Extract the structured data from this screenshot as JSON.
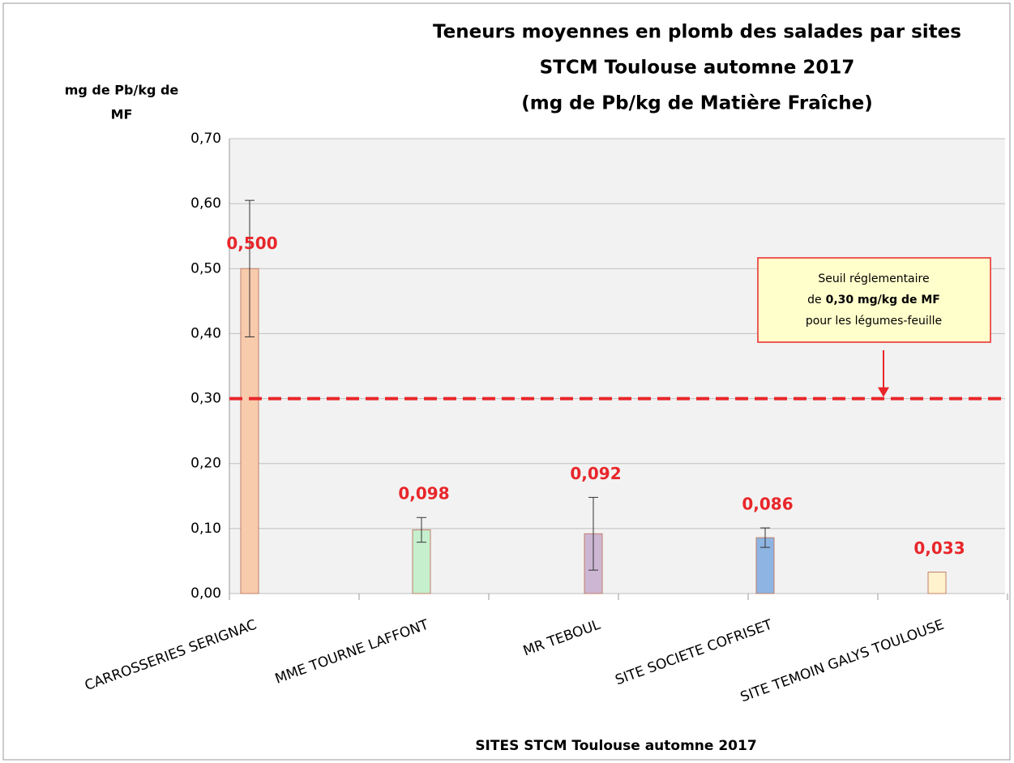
{
  "chart_data": {
    "type": "bar",
    "title": [
      "Teneurs moyennes en plomb des salades par sites",
      "STCM Toulouse automne 2017",
      "(mg de Pb/kg de Matière Fraîche)"
    ],
    "y_label": [
      "mg de Pb/kg de",
      "MF"
    ],
    "x_label": "SITES STCM Toulouse automne 2017",
    "categories": [
      "CARROSSERIES SERIGNAC",
      "MME TOURNE LAFFONT",
      "MR TEBOUL",
      "SITE SOCIETE COFRISET",
      "SITE TEMOIN GALYS TOULOUSE"
    ],
    "values": [
      0.5,
      0.098,
      0.092,
      0.086,
      0.033
    ],
    "value_labels": [
      "0,500",
      "0,098",
      "0,092",
      "0,086",
      "0,033"
    ],
    "errors": [
      0.105,
      0.019,
      0.056,
      0.015,
      null
    ],
    "colors": [
      "#f8cbad",
      "#c6efce",
      "#cdb6d4",
      "#8db4e2",
      "#fff2cc"
    ],
    "ylim": [
      0,
      0.7
    ],
    "yticks": [
      {
        "value": 0,
        "label": "0,00"
      },
      {
        "value": 0.1,
        "label": "0,10"
      },
      {
        "value": 0.2,
        "label": "0,20"
      },
      {
        "value": 0.3,
        "label": "0,30"
      },
      {
        "value": 0.4,
        "label": "0,40"
      },
      {
        "value": 0.5,
        "label": "0,50"
      },
      {
        "value": 0.6,
        "label": "0,60"
      },
      {
        "value": 0.7,
        "label": "0,70"
      }
    ],
    "grid": true,
    "threshold": 0.3,
    "annotation": {
      "line1": "Seuil réglementaire",
      "line2_prefix": "de",
      "line2_bold": "0,30 mg/kg de MF",
      "line3": "pour les légumes-feuille"
    }
  }
}
